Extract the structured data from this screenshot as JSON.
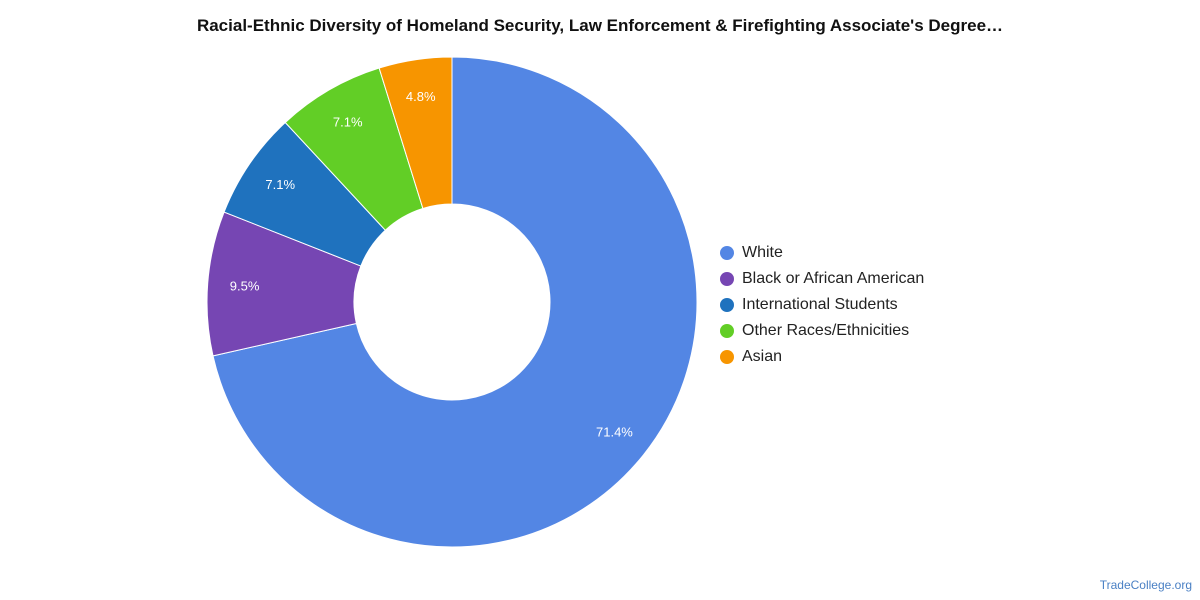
{
  "chart_data": {
    "type": "pie",
    "variant": "donut",
    "title": "Racial-Ethnic Diversity of Homeland Security, Law Enforcement & Firefighting Associate's Degree…",
    "slices": [
      {
        "name": "White",
        "value": 71.4,
        "label": "71.4%",
        "color": "#5386E4"
      },
      {
        "name": "Black or African American",
        "value": 9.5,
        "label": "9.5%",
        "color": "#7646B3"
      },
      {
        "name": "International Students",
        "value": 7.1,
        "label": "7.1%",
        "color": "#1F72BE"
      },
      {
        "name": "Other Races/Ethnicities",
        "value": 7.1,
        "label": "7.1%",
        "color": "#62CE26"
      },
      {
        "name": "Asian",
        "value": 4.8,
        "label": "4.8%",
        "color": "#F79500"
      }
    ],
    "legend_position": "right"
  },
  "watermark": "TradeCollege.org"
}
